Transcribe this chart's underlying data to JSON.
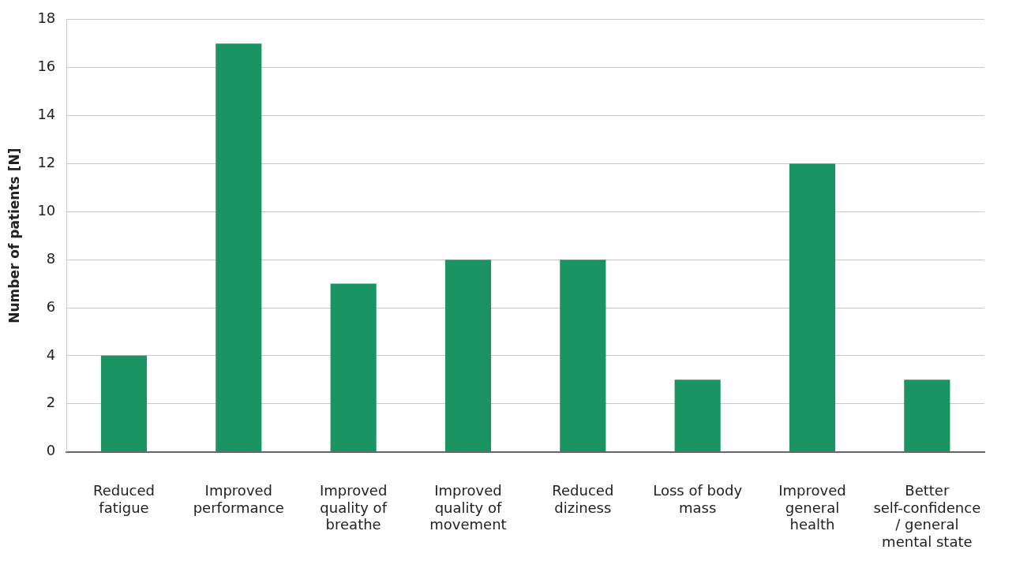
{
  "chart_data": {
    "type": "bar",
    "ylabel": "Number of patients [N]",
    "categories": [
      "Reduced fatigue",
      "Improved performance",
      "Improved quality of breathe",
      "Improved quality of movement",
      "Reduced diziness",
      "Loss of body mass",
      "Improved general health",
      "Better self-confidence / general mental state"
    ],
    "values": [
      4,
      17,
      7,
      8,
      8,
      3,
      12,
      3
    ],
    "color": "#1a9463",
    "ylim": [
      0,
      18
    ],
    "yticks": [
      0,
      2,
      4,
      6,
      8,
      10,
      12,
      14,
      16,
      18
    ],
    "grid": "y"
  }
}
